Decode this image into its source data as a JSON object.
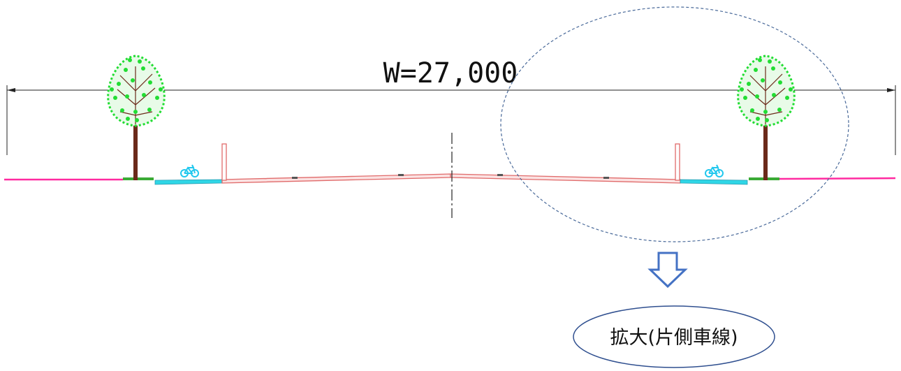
{
  "dimension": {
    "label": "W=27,000"
  },
  "callout": {
    "label": "拡大(片側車線)"
  },
  "colors": {
    "pavement": "#e06a6a",
    "sidewalk_edge": "#ff2aa0",
    "bike_lane": "#2fd6e6",
    "bike_icon": "#22c8ee",
    "planting_strip": "#3aaa35",
    "foliage": "#22dd33",
    "trunk": "#6b2a1a",
    "zoom_circle": "#4a6a9a",
    "arrow": "#4472c4",
    "callout_border": "#2f4f8f"
  },
  "icons": {
    "left_bike": "bicycle-icon",
    "right_bike": "bicycle-icon",
    "arrow": "arrow-down-icon"
  }
}
